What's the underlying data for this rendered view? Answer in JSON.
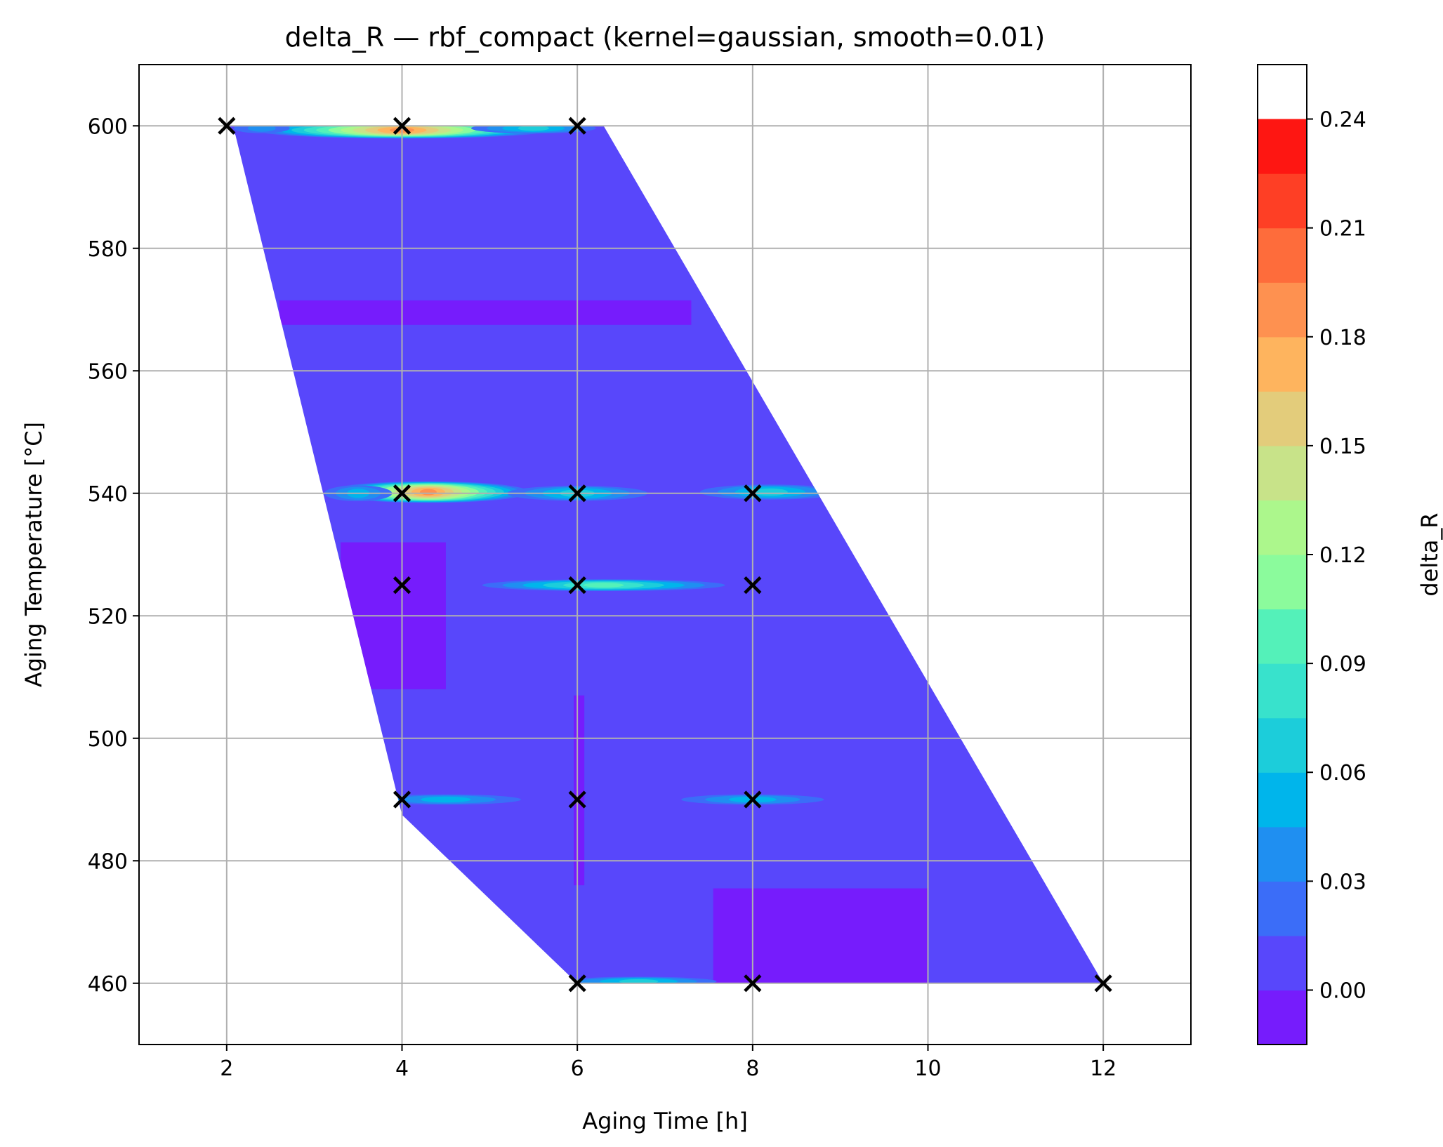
{
  "chart_data": {
    "type": "heatmap",
    "title": "delta_R — rbf_compact (kernel=gaussian, smooth=0.01)",
    "xlabel": "Aging Time [h]",
    "ylabel": "Aging Temperature [°C]",
    "xlim": [
      1,
      13
    ],
    "ylim": [
      450,
      610
    ],
    "xticks": [
      2,
      4,
      6,
      8,
      10,
      12
    ],
    "yticks": [
      460,
      480,
      500,
      520,
      540,
      560,
      580,
      600
    ],
    "grid": true,
    "colorbar": {
      "label": "delta_R",
      "range": [
        -0.015,
        0.255
      ],
      "level_step": 0.015,
      "ticks": [
        0.0,
        0.03,
        0.06,
        0.09,
        0.12,
        0.15,
        0.18,
        0.21,
        0.24
      ],
      "tick_labels": [
        "0.00",
        "0.03",
        "0.06",
        "0.09",
        "0.12",
        "0.15",
        "0.18",
        "0.21",
        "0.24"
      ],
      "colors": [
        "#761cfc",
        "#5847fb",
        "#3b6df8",
        "#1f8ff1",
        "#00b5eb",
        "#1ccdda",
        "#38e2cc",
        "#54f1b9",
        "#8bfb9c",
        "#acf78c",
        "#c8e389",
        "#e3cc7b",
        "#feb45e",
        "#fe9150",
        "#fe6c3b",
        "#fe3f25",
        "#fe1612"
      ]
    },
    "samples": [
      {
        "x": 2,
        "y": 600
      },
      {
        "x": 4,
        "y": 600
      },
      {
        "x": 6,
        "y": 600
      },
      {
        "x": 4,
        "y": 540
      },
      {
        "x": 6,
        "y": 540
      },
      {
        "x": 8,
        "y": 540
      },
      {
        "x": 4,
        "y": 525
      },
      {
        "x": 6,
        "y": 525
      },
      {
        "x": 8,
        "y": 525
      },
      {
        "x": 4,
        "y": 490
      },
      {
        "x": 6,
        "y": 490
      },
      {
        "x": 8,
        "y": 490
      },
      {
        "x": 6,
        "y": 460
      },
      {
        "x": 8,
        "y": 460
      },
      {
        "x": 12,
        "y": 460
      }
    ],
    "domain_polygon": [
      {
        "x": 2,
        "y": 600
      },
      {
        "x": 6.3,
        "y": 600
      },
      {
        "x": 12,
        "y": 460
      },
      {
        "x": 6,
        "y": 460
      },
      {
        "x": 4,
        "y": 487.5
      },
      {
        "x": 3.1,
        "y": 540
      },
      {
        "x": 2.1,
        "y": 598.5
      }
    ],
    "background_value": 0.005,
    "regions": [
      {
        "x": [
          2.6,
          7.3
        ],
        "y": [
          567.5,
          571.5
        ],
        "value": -0.005
      },
      {
        "x": [
          3.3,
          4.5
        ],
        "y": [
          508,
          532
        ],
        "value": -0.005
      },
      {
        "x": [
          7.55,
          10.0
        ],
        "y": [
          460,
          475.5
        ],
        "value": -0.005
      },
      {
        "x": [
          5.96,
          6.08
        ],
        "y": [
          476,
          507
        ],
        "value": -0.005
      }
    ],
    "hotspots": [
      {
        "x": 4.0,
        "y": 599.3,
        "rx": 1.75,
        "ry": 1.4,
        "peak": 0.18
      },
      {
        "x": 5.5,
        "y": 599.6,
        "rx": 0.8,
        "ry": 0.9,
        "peak": 0.06
      },
      {
        "x": 2.4,
        "y": 599.6,
        "rx": 0.4,
        "ry": 0.9,
        "peak": 0.04
      },
      {
        "x": 4.3,
        "y": 540.2,
        "rx": 1.2,
        "ry": 1.8,
        "peak": 0.18
      },
      {
        "x": 6.0,
        "y": 540.0,
        "rx": 0.9,
        "ry": 1.3,
        "peak": 0.06
      },
      {
        "x": 8.2,
        "y": 540.2,
        "rx": 0.9,
        "ry": 1.3,
        "peak": 0.07
      },
      {
        "x": 3.5,
        "y": 540.0,
        "rx": 0.45,
        "ry": 1.4,
        "peak": 0.05
      },
      {
        "x": 6.3,
        "y": 525.0,
        "rx": 1.5,
        "ry": 1.0,
        "peak": 0.09
      },
      {
        "x": 4.5,
        "y": 490.0,
        "rx": 1.0,
        "ry": 0.9,
        "peak": 0.05
      },
      {
        "x": 8.0,
        "y": 490.0,
        "rx": 0.95,
        "ry": 0.9,
        "peak": 0.05
      },
      {
        "x": 6.7,
        "y": 460.3,
        "rx": 1.0,
        "ry": 0.8,
        "peak": 0.06
      }
    ]
  }
}
